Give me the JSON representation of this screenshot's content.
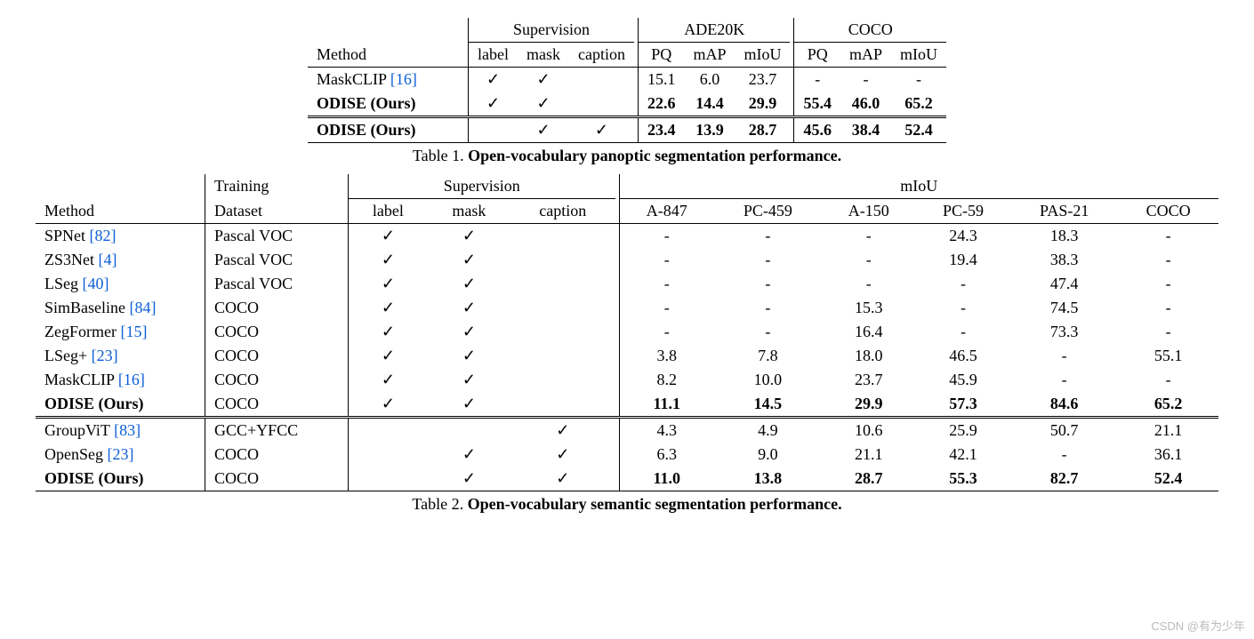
{
  "checkmark": "✓",
  "watermark": "CSDN @有为少年",
  "table1": {
    "caption_prefix": "Table 1. ",
    "caption_bold": "Open-vocabulary panoptic segmentation performance.",
    "header_method": "Method",
    "group_supervision": "Supervision",
    "group_ade": "ADE20K",
    "group_coco": "COCO",
    "sup_cols": [
      "label",
      "mask",
      "caption"
    ],
    "ade_cols": [
      "PQ",
      "mAP",
      "mIoU"
    ],
    "coco_cols": [
      "PQ",
      "mAP",
      "mIoU"
    ],
    "rows": [
      {
        "method": "MaskCLIP",
        "cite": "[16]",
        "bold": false,
        "sup": [
          true,
          true,
          false
        ],
        "ade": [
          "15.1",
          "6.0",
          "23.7"
        ],
        "coco": [
          "-",
          "-",
          "-"
        ]
      },
      {
        "method": "ODISE (Ours)",
        "cite": "",
        "bold": true,
        "sup": [
          true,
          true,
          false
        ],
        "ade": [
          "22.6",
          "14.4",
          "29.9"
        ],
        "coco": [
          "55.4",
          "46.0",
          "65.2"
        ]
      }
    ],
    "rows2": [
      {
        "method": "ODISE (Ours)",
        "cite": "",
        "bold": true,
        "sup": [
          false,
          true,
          true
        ],
        "ade": [
          "23.4",
          "13.9",
          "28.7"
        ],
        "coco": [
          "45.6",
          "38.4",
          "52.4"
        ]
      }
    ]
  },
  "table2": {
    "caption_prefix": "Table 2. ",
    "caption_bold": "Open-vocabulary semantic segmentation performance.",
    "header_method": "Method",
    "header_dataset_l1": "Training",
    "header_dataset_l2": "Dataset",
    "group_supervision": "Supervision",
    "group_miou": "mIoU",
    "sup_cols": [
      "label",
      "mask",
      "caption"
    ],
    "miou_cols": [
      "A-847",
      "PC-459",
      "A-150",
      "PC-59",
      "PAS-21",
      "COCO"
    ],
    "rows": [
      {
        "method": "SPNet",
        "cite": "[82]",
        "bold": false,
        "dataset": "Pascal VOC",
        "sup": [
          true,
          true,
          false
        ],
        "vals": [
          "-",
          "-",
          "-",
          "24.3",
          "18.3",
          "-"
        ]
      },
      {
        "method": "ZS3Net",
        "cite": "[4]",
        "bold": false,
        "dataset": "Pascal VOC",
        "sup": [
          true,
          true,
          false
        ],
        "vals": [
          "-",
          "-",
          "-",
          "19.4",
          "38.3",
          "-"
        ]
      },
      {
        "method": "LSeg",
        "cite": "[40]",
        "bold": false,
        "dataset": "Pascal VOC",
        "sup": [
          true,
          true,
          false
        ],
        "vals": [
          "-",
          "-",
          "-",
          "-",
          "47.4",
          "-"
        ]
      },
      {
        "method": "SimBaseline",
        "cite": "[84]",
        "bold": false,
        "dataset": "COCO",
        "sup": [
          true,
          true,
          false
        ],
        "vals": [
          "-",
          "-",
          "15.3",
          "-",
          "74.5",
          "-"
        ]
      },
      {
        "method": "ZegFormer",
        "cite": "[15]",
        "bold": false,
        "dataset": "COCO",
        "sup": [
          true,
          true,
          false
        ],
        "vals": [
          "-",
          "-",
          "16.4",
          "-",
          "73.3",
          "-"
        ]
      },
      {
        "method": "LSeg+",
        "cite": "[23]",
        "bold": false,
        "dataset": "COCO",
        "sup": [
          true,
          true,
          false
        ],
        "vals": [
          "3.8",
          "7.8",
          "18.0",
          "46.5",
          "-",
          "55.1"
        ]
      },
      {
        "method": "MaskCLIP",
        "cite": "[16]",
        "bold": false,
        "dataset": "COCO",
        "sup": [
          true,
          true,
          false
        ],
        "vals": [
          "8.2",
          "10.0",
          "23.7",
          "45.9",
          "-",
          "-"
        ]
      },
      {
        "method": "ODISE (Ours)",
        "cite": "",
        "bold": true,
        "dataset": "COCO",
        "sup": [
          true,
          true,
          false
        ],
        "vals": [
          "11.1",
          "14.5",
          "29.9",
          "57.3",
          "84.6",
          "65.2"
        ]
      }
    ],
    "rows2": [
      {
        "method": "GroupViT",
        "cite": "[83]",
        "bold": false,
        "dataset": "GCC+YFCC",
        "sup": [
          false,
          false,
          true
        ],
        "vals": [
          "4.3",
          "4.9",
          "10.6",
          "25.9",
          "50.7",
          "21.1"
        ]
      },
      {
        "method": "OpenSeg",
        "cite": "[23]",
        "bold": false,
        "dataset": "COCO",
        "sup": [
          false,
          true,
          true
        ],
        "vals": [
          "6.3",
          "9.0",
          "21.1",
          "42.1",
          "-",
          "36.1"
        ]
      },
      {
        "method": "ODISE (Ours)",
        "cite": "",
        "bold": true,
        "dataset": "COCO",
        "sup": [
          false,
          true,
          true
        ],
        "vals": [
          "11.0",
          "13.8",
          "28.7",
          "55.3",
          "82.7",
          "52.4"
        ]
      }
    ]
  }
}
